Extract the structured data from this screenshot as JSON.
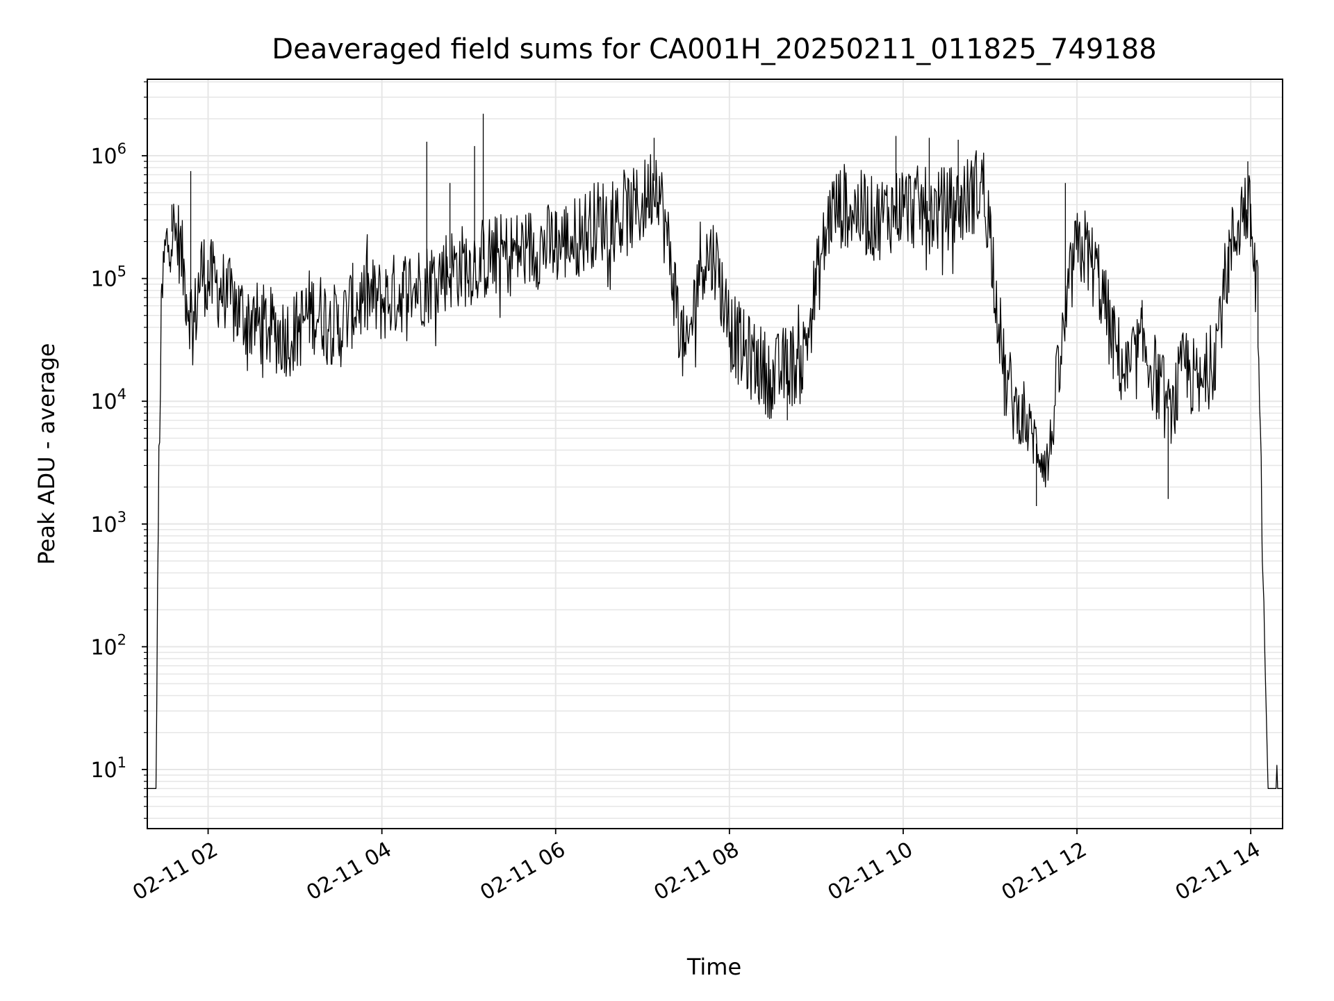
{
  "chart_data": {
    "type": "line",
    "title": "Deaveraged field sums for CA001H_20250211_011825_749188",
    "xlabel": "Time",
    "ylabel": "Peak ADU - average",
    "yscale": "log",
    "ylim": [
      3.3,
      4200000
    ],
    "xlim": [
      "2025-02-11 01:18",
      "2025-02-11 14:22"
    ],
    "grid": true,
    "line_color": "#000000",
    "grid_color": "#e6e6e6",
    "x_ticks": [
      "02-11 02",
      "02-11 04",
      "02-11 06",
      "02-11 08",
      "02-11 10",
      "02-11 12",
      "02-11 14"
    ],
    "y_ticks": [
      {
        "base": "10",
        "exp": "1"
      },
      {
        "base": "10",
        "exp": "2"
      },
      {
        "base": "10",
        "exp": "3"
      },
      {
        "base": "10",
        "exp": "4"
      },
      {
        "base": "10",
        "exp": "5"
      },
      {
        "base": "10",
        "exp": "6"
      }
    ],
    "series": [
      {
        "x": [
          "2025-02-11 01:18",
          "2025-02-11 01:24",
          "2025-02-11 01:26",
          "2025-02-11 01:28",
          "2025-02-11 01:30",
          "2025-02-11 01:34",
          "2025-02-11 01:40",
          "2025-02-11 01:45",
          "2025-02-11 01:50",
          "2025-02-11 01:55",
          "2025-02-11 02:00",
          "2025-02-11 02:10",
          "2025-02-11 02:20",
          "2025-02-11 02:30",
          "2025-02-11 02:40",
          "2025-02-11 02:50",
          "2025-02-11 03:00",
          "2025-02-11 03:10",
          "2025-02-11 03:20",
          "2025-02-11 03:30",
          "2025-02-11 03:40",
          "2025-02-11 03:50",
          "2025-02-11 04:00",
          "2025-02-11 04:15",
          "2025-02-11 04:30",
          "2025-02-11 04:45",
          "2025-02-11 05:00",
          "2025-02-11 05:15",
          "2025-02-11 05:30",
          "2025-02-11 05:45",
          "2025-02-11 06:00",
          "2025-02-11 06:15",
          "2025-02-11 06:30",
          "2025-02-11 06:45",
          "2025-02-11 07:00",
          "2025-02-11 07:10",
          "2025-02-11 07:20",
          "2025-02-11 07:30",
          "2025-02-11 07:40",
          "2025-02-11 07:50",
          "2025-02-11 08:00",
          "2025-02-11 08:10",
          "2025-02-11 08:20",
          "2025-02-11 08:30",
          "2025-02-11 08:40",
          "2025-02-11 08:50",
          "2025-02-11 09:00",
          "2025-02-11 09:10",
          "2025-02-11 09:20",
          "2025-02-11 09:40",
          "2025-02-11 10:00",
          "2025-02-11 10:20",
          "2025-02-11 10:40",
          "2025-02-11 10:55",
          "2025-02-11 11:00",
          "2025-02-11 11:10",
          "2025-02-11 11:20",
          "2025-02-11 11:30",
          "2025-02-11 11:40",
          "2025-02-11 11:50",
          "2025-02-11 11:58",
          "2025-02-11 12:05",
          "2025-02-11 12:15",
          "2025-02-11 12:25",
          "2025-02-11 12:35",
          "2025-02-11 12:45",
          "2025-02-11 12:55",
          "2025-02-11 13:05",
          "2025-02-11 13:15",
          "2025-02-11 13:25",
          "2025-02-11 13:35",
          "2025-02-11 13:45",
          "2025-02-11 13:55",
          "2025-02-11 14:00",
          "2025-02-11 14:05",
          "2025-02-11 14:08",
          "2025-02-11 14:12",
          "2025-02-11 14:22"
        ],
        "y": [
          7,
          7,
          3000,
          60000,
          150000,
          250000,
          200000,
          80000,
          40000,
          120000,
          100000,
          80000,
          55000,
          45000,
          40000,
          35000,
          35000,
          55000,
          50000,
          38000,
          60000,
          70000,
          65000,
          80000,
          90000,
          120000,
          130000,
          150000,
          160000,
          180000,
          190000,
          220000,
          300000,
          300000,
          400000,
          700000,
          120000,
          20000,
          150000,
          150000,
          40000,
          25000,
          20000,
          15000,
          20000,
          20000,
          90000,
          350000,
          400000,
          300000,
          400000,
          350000,
          400000,
          600000,
          250000,
          15000,
          8000,
          5000,
          3000,
          30000,
          150000,
          180000,
          100000,
          30000,
          15000,
          30000,
          15000,
          8000,
          20000,
          12000,
          25000,
          150000,
          400000,
          300000,
          60000,
          600,
          7,
          7
        ],
        "spikes": [
          {
            "x": "2025-02-11 01:35",
            "y": 400000
          },
          {
            "x": "2025-02-11 01:48",
            "y": 750000
          },
          {
            "x": "2025-02-11 04:31",
            "y": 1300000
          },
          {
            "x": "2025-02-11 04:47",
            "y": 600000
          },
          {
            "x": "2025-02-11 05:04",
            "y": 1200000
          },
          {
            "x": "2025-02-11 05:10",
            "y": 2200000
          },
          {
            "x": "2025-02-11 07:08",
            "y": 1400000
          },
          {
            "x": "2025-02-11 08:40",
            "y": 7000
          },
          {
            "x": "2025-02-11 09:55",
            "y": 1450000
          },
          {
            "x": "2025-02-11 10:18",
            "y": 1400000
          },
          {
            "x": "2025-02-11 10:38",
            "y": 1350000
          },
          {
            "x": "2025-02-11 11:32",
            "y": 1400
          },
          {
            "x": "2025-02-11 11:52",
            "y": 600000
          },
          {
            "x": "2025-02-11 13:03",
            "y": 1600
          },
          {
            "x": "2025-02-11 13:58",
            "y": 900000
          }
        ]
      }
    ]
  }
}
